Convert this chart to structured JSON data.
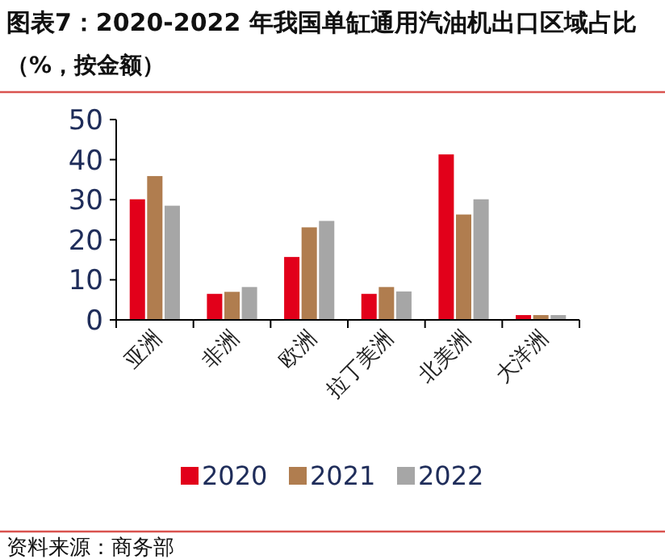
{
  "chart_data": {
    "type": "bar",
    "title": "图表7：2020-2022 年我国单缸通用汽油机出口区域占比",
    "subtitle": "（%，按金额）",
    "categories": [
      "亚洲",
      "非洲",
      "欧洲",
      "拉丁美洲",
      "北美洲",
      "大洋洲"
    ],
    "series": [
      {
        "name": "2020",
        "color": "#e2001a",
        "values": [
          30.1,
          6.5,
          15.7,
          6.5,
          41.3,
          1.2
        ]
      },
      {
        "name": "2021",
        "color": "#b07d4f",
        "values": [
          35.9,
          7.0,
          23.1,
          8.2,
          26.3,
          1.2
        ]
      },
      {
        "name": "2022",
        "color": "#a6a6a6",
        "values": [
          28.5,
          8.2,
          24.7,
          7.1,
          30.1,
          1.2
        ]
      }
    ],
    "ylim": [
      0,
      50
    ],
    "yticks": [
      0,
      10,
      20,
      30,
      40,
      50
    ],
    "grid": false,
    "legend": "bottom",
    "annotations": [
      "资料来源：商务部"
    ]
  }
}
